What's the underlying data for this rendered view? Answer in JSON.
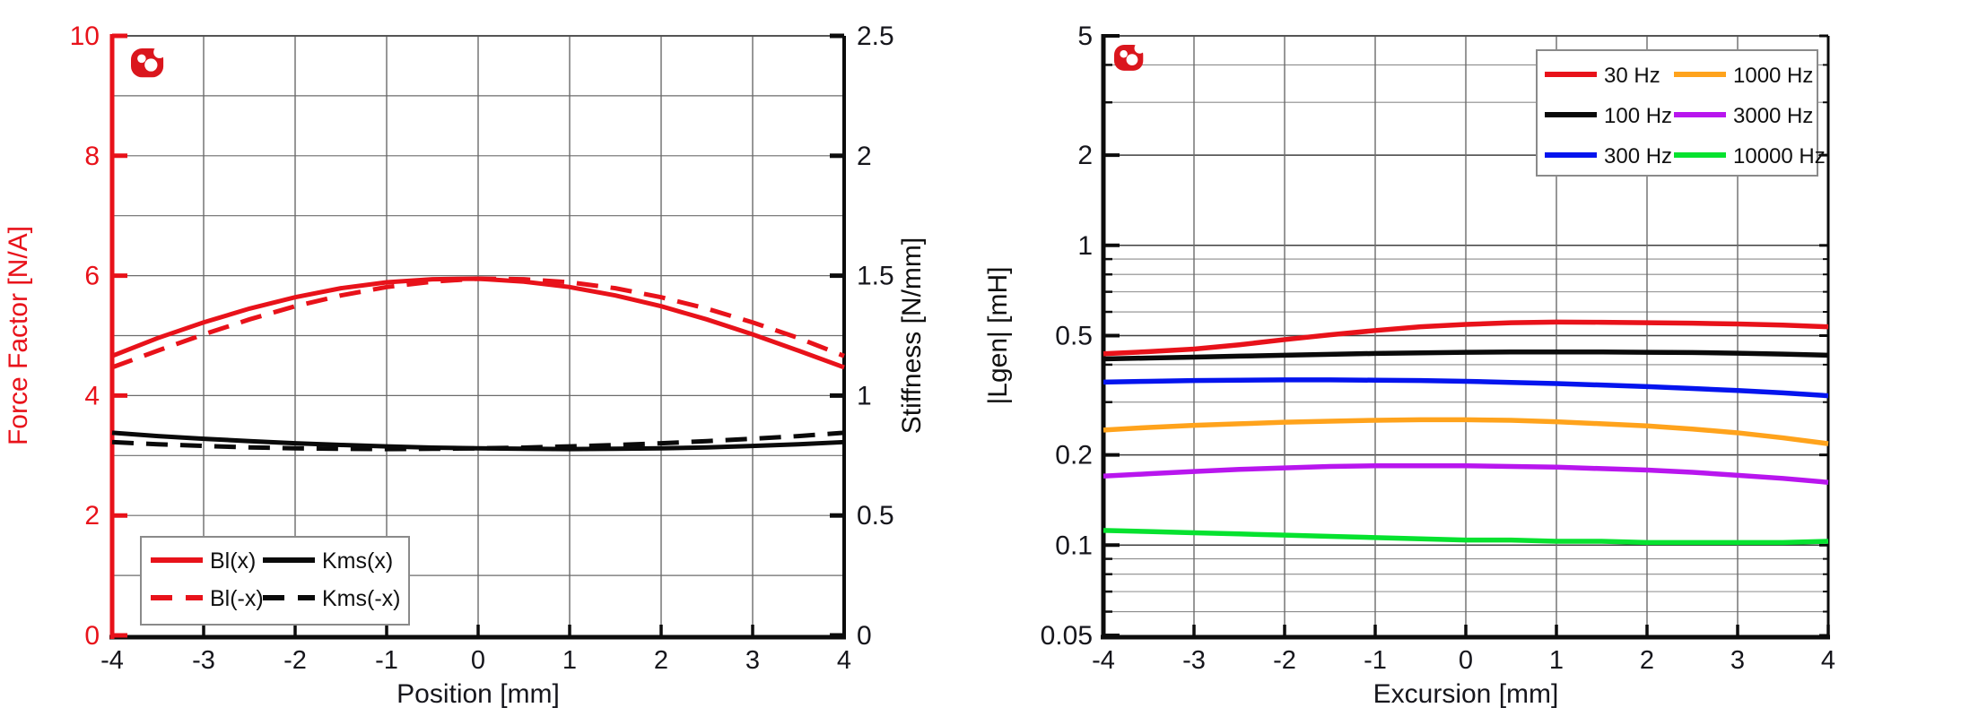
{
  "page": {
    "background": "#ffffff"
  },
  "logo": {
    "name": "klippel-logo",
    "color": "#da161d"
  },
  "colors": {
    "red": "#e8121a",
    "black": "#0a0a0a",
    "blue": "#0414ee",
    "orange": "#ffa31c",
    "purple": "#b816ee",
    "green": "#06e22f",
    "grid": "#6b6b6b",
    "grid_minor": "#8c8c8c",
    "frame_top": "#555555",
    "legend_border": "#8a8a8a",
    "tick_text": "#16161c"
  },
  "chart_data": [
    {
      "id": "force-factor-stiffness",
      "type": "line",
      "title": "",
      "xlabel": "Position [mm]",
      "xlim": [
        -4,
        4
      ],
      "x_ticks": [
        "-4",
        "-3",
        "-2",
        "-1",
        "0",
        "1",
        "2",
        "3",
        "4"
      ],
      "x_grid": [
        -3,
        -2,
        -1,
        0,
        1,
        2,
        3
      ],
      "left_axis": {
        "label": "Force Factor [N/A]",
        "color": "#e8121a",
        "lim": [
          0,
          10
        ],
        "ticks": [
          0,
          2,
          4,
          6,
          8,
          10
        ],
        "tick_labels": [
          "0",
          "2",
          "4",
          "6",
          "8",
          "10"
        ],
        "grid_values": [
          1,
          2,
          3,
          4,
          5,
          6,
          7,
          8,
          9
        ]
      },
      "right_axis": {
        "label": "Stiffness [N/mm]",
        "color": "#0a0a0a",
        "lim": [
          0,
          2.5
        ],
        "ticks": [
          0,
          0.5,
          1,
          1.5,
          2,
          2.5
        ],
        "tick_labels": [
          "0",
          "0.5",
          "1",
          "1.5",
          "2",
          "2.5"
        ]
      },
      "x": [
        -4,
        -3.5,
        -3,
        -2.5,
        -2,
        -1.5,
        -1,
        -0.5,
        0,
        0.5,
        1,
        1.5,
        2,
        2.5,
        3,
        3.5,
        4
      ],
      "series": [
        {
          "name": "Bl(x)",
          "axis": "left",
          "color": "#e8121a",
          "dash": "solid",
          "values": [
            4.66,
            4.96,
            5.22,
            5.45,
            5.64,
            5.79,
            5.89,
            5.94,
            5.95,
            5.9,
            5.81,
            5.67,
            5.49,
            5.27,
            5.02,
            4.75,
            4.47
          ]
        },
        {
          "name": "Bl(-x)",
          "axis": "left",
          "color": "#e8121a",
          "dash": "dashed",
          "values": [
            4.47,
            4.75,
            5.02,
            5.27,
            5.49,
            5.67,
            5.81,
            5.9,
            5.95,
            5.94,
            5.89,
            5.79,
            5.64,
            5.45,
            5.22,
            4.96,
            4.66
          ]
        },
        {
          "name": "Kms(x)",
          "axis": "right",
          "color": "#0a0a0a",
          "dash": "solid",
          "values": [
            0.845,
            0.831,
            0.82,
            0.81,
            0.801,
            0.794,
            0.788,
            0.783,
            0.78,
            0.778,
            0.777,
            0.778,
            0.78,
            0.784,
            0.79,
            0.797,
            0.806
          ]
        },
        {
          "name": "Kms(-x)",
          "axis": "right",
          "color": "#0a0a0a",
          "dash": "dashed",
          "values": [
            0.806,
            0.797,
            0.79,
            0.784,
            0.78,
            0.778,
            0.777,
            0.778,
            0.78,
            0.783,
            0.788,
            0.794,
            0.801,
            0.81,
            0.82,
            0.831,
            0.845
          ]
        }
      ],
      "legend": {
        "position": "bottom-left",
        "rows": [
          [
            "Bl(x)",
            "Kms(x)"
          ],
          [
            "Bl(-x)",
            "Kms(-x)"
          ]
        ]
      }
    },
    {
      "id": "lgen-vs-excursion",
      "type": "line",
      "title": "",
      "xlabel": "Excursion [mm]",
      "ylabel": "|Lgen| [mH]",
      "yscale": "log",
      "ylim": [
        0.05,
        5
      ],
      "xlim": [
        -4,
        4
      ],
      "x_ticks": [
        "-4",
        "-3",
        "-2",
        "-1",
        "0",
        "1",
        "2",
        "3",
        "4"
      ],
      "x_grid": [
        -3,
        -2,
        -1,
        0,
        1,
        2,
        3
      ],
      "y_ticks": [
        {
          "v": 5,
          "label": "5"
        },
        {
          "v": 2,
          "label": "2"
        },
        {
          "v": 1,
          "label": "1"
        },
        {
          "v": 0.5,
          "label": "0.5"
        },
        {
          "v": 0.2,
          "label": "0.2"
        },
        {
          "v": 0.1,
          "label": "0.1"
        },
        {
          "v": 0.05,
          "label": "0.05"
        }
      ],
      "y_grid_major": [
        2,
        1,
        0.5,
        0.2,
        0.1
      ],
      "y_grid_minor": [
        4,
        3,
        0.9,
        0.8,
        0.7,
        0.6,
        0.4,
        0.3,
        0.09,
        0.08,
        0.07,
        0.06
      ],
      "x": [
        -4,
        -3.5,
        -3,
        -2.5,
        -2,
        -1.5,
        -1,
        -0.5,
        0,
        0.5,
        1,
        1.5,
        2,
        2.5,
        3,
        3.5,
        4
      ],
      "series": [
        {
          "name": "30 Hz",
          "color": "#e8121a",
          "dash": "solid",
          "values": [
            0.435,
            0.442,
            0.451,
            0.466,
            0.485,
            0.503,
            0.52,
            0.535,
            0.545,
            0.552,
            0.555,
            0.554,
            0.552,
            0.55,
            0.547,
            0.542,
            0.535
          ]
        },
        {
          "name": "100 Hz",
          "color": "#0a0a0a",
          "dash": "solid",
          "values": [
            0.418,
            0.421,
            0.424,
            0.427,
            0.43,
            0.433,
            0.436,
            0.438,
            0.44,
            0.441,
            0.441,
            0.441,
            0.44,
            0.439,
            0.437,
            0.434,
            0.43
          ]
        },
        {
          "name": "300 Hz",
          "color": "#0414ee",
          "dash": "solid",
          "values": [
            0.35,
            0.352,
            0.354,
            0.355,
            0.356,
            0.356,
            0.355,
            0.354,
            0.352,
            0.349,
            0.346,
            0.342,
            0.338,
            0.333,
            0.328,
            0.322,
            0.315
          ]
        },
        {
          "name": "1000 Hz",
          "color": "#ffa31c",
          "dash": "solid",
          "values": [
            0.242,
            0.247,
            0.251,
            0.254,
            0.257,
            0.259,
            0.261,
            0.262,
            0.262,
            0.261,
            0.258,
            0.254,
            0.25,
            0.244,
            0.237,
            0.228,
            0.218
          ]
        },
        {
          "name": "3000 Hz",
          "color": "#b816ee",
          "dash": "solid",
          "values": [
            0.17,
            0.173,
            0.176,
            0.179,
            0.181,
            0.183,
            0.184,
            0.184,
            0.184,
            0.183,
            0.182,
            0.18,
            0.178,
            0.175,
            0.171,
            0.167,
            0.162
          ]
        },
        {
          "name": "10000 Hz",
          "color": "#06e22f",
          "dash": "solid",
          "values": [
            0.112,
            0.111,
            0.11,
            0.109,
            0.108,
            0.107,
            0.106,
            0.105,
            0.104,
            0.104,
            0.103,
            0.103,
            0.102,
            0.102,
            0.102,
            0.102,
            0.103
          ]
        }
      ],
      "legend": {
        "position": "top-right",
        "rows": [
          [
            "30 Hz",
            "1000 Hz"
          ],
          [
            "100 Hz",
            "3000 Hz"
          ],
          [
            "300 Hz",
            "10000 Hz"
          ]
        ]
      }
    }
  ]
}
